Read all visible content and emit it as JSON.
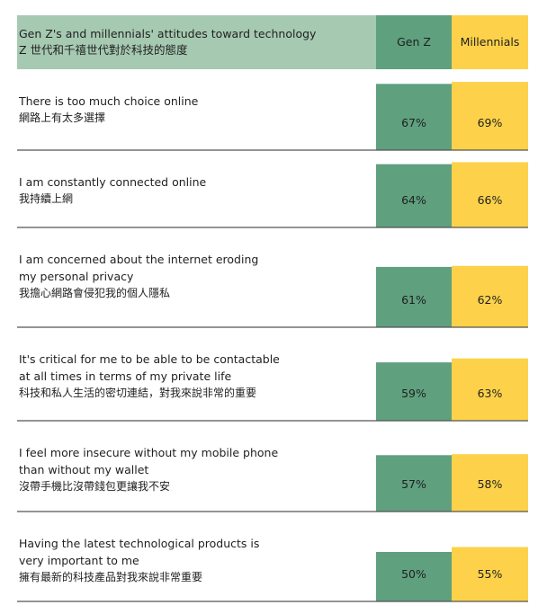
{
  "colors": {
    "header_title_bg": "#a6c9b2",
    "gen_z": "#5fa07f",
    "millennials": "#fdd24a",
    "separator": "#555555"
  },
  "header": {
    "title_en": "Gen Z's and millennials' attitudes toward technology",
    "title_zh": "Z 世代和千禧世代對於科技的態度"
  },
  "chart_data": {
    "type": "bar",
    "title": "Gen Z's and millennials' attitudes toward technology",
    "subtitle": "Z 世代和千禧世代對於科技的態度",
    "unit": "%",
    "ylim": [
      0,
      100
    ],
    "series": [
      {
        "name": "Gen Z",
        "values": [
          67,
          64,
          61,
          59,
          57,
          50
        ]
      },
      {
        "name": "Millennials",
        "values": [
          69,
          66,
          62,
          63,
          58,
          55
        ]
      }
    ],
    "categories": [
      {
        "en": [
          "There is too much choice online"
        ],
        "zh": "網路上有太多選擇"
      },
      {
        "en": [
          "I am constantly connected online"
        ],
        "zh": "我持續上網"
      },
      {
        "en": [
          "I am concerned about the internet eroding",
          "my personal privacy"
        ],
        "zh": "我擔心網路會侵犯我的個人隱私"
      },
      {
        "en": [
          "It's critical for me to be able to be contactable",
          "at all times in terms of my private life"
        ],
        "zh": "科技和私人生活的密切連結，對我來說非常的重要"
      },
      {
        "en": [
          "I feel more insecure without my mobile phone",
          "than without my wallet"
        ],
        "zh": "沒帶手機比沒帶錢包更讓我不安"
      },
      {
        "en": [
          "Having the latest technological products is",
          "very important to me"
        ],
        "zh": "擁有最新的科技產品對我來說非常重要"
      }
    ]
  }
}
